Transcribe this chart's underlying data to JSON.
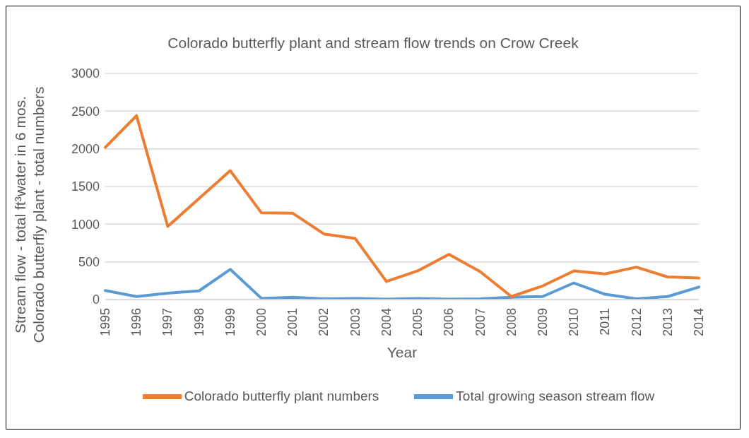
{
  "chart_data": {
    "type": "line",
    "title": "Colorado butterfly plant and stream flow trends on Crow Creek",
    "xlabel": "Year",
    "ylabel": "Stream flow - total ft³water in 6 mos.\nColorado butterfly plant - total numbers",
    "categories": [
      "1995",
      "1996",
      "1997",
      "1998",
      "1999",
      "2000",
      "2001",
      "2002",
      "2003",
      "2004",
      "2005",
      "2006",
      "2007",
      "2008",
      "2009",
      "2010",
      "2011",
      "2012",
      "2013",
      "2014"
    ],
    "series": [
      {
        "name": "Total growing season stream flow",
        "color": "#5b9bd5",
        "values": [
          120,
          40,
          85,
          115,
          400,
          15,
          30,
          10,
          15,
          5,
          15,
          5,
          10,
          30,
          40,
          220,
          70,
          10,
          40,
          165
        ]
      },
      {
        "name": "Colorado butterfly plant numbers",
        "color": "#ed7d31",
        "values": [
          2020,
          2440,
          970,
          1340,
          1710,
          1150,
          1145,
          870,
          810,
          240,
          380,
          600,
          370,
          40,
          180,
          380,
          340,
          430,
          300,
          285
        ]
      }
    ],
    "ylim": [
      0,
      3000
    ],
    "yticks": [
      0,
      500,
      1000,
      1500,
      2000,
      2500,
      3000
    ],
    "grid": "y",
    "legend": "bottom",
    "marker": "none",
    "line_style": "solid"
  }
}
